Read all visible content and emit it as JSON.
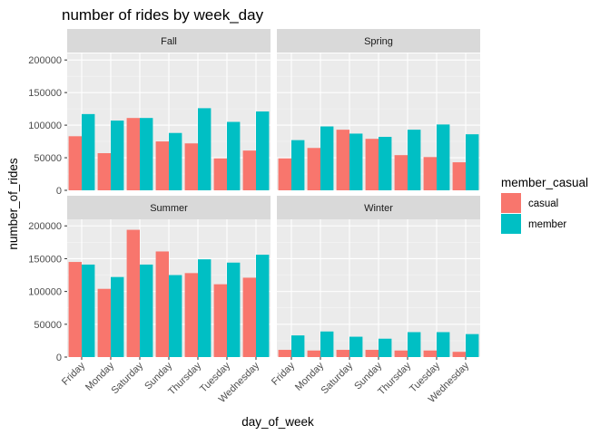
{
  "chart_data": {
    "type": "bar",
    "title": "number of rides by week_day",
    "xlabel": "day_of_week",
    "ylabel": "number_of_rides",
    "ylim": [
      0,
      210000
    ],
    "yticks": [
      0,
      50000,
      100000,
      150000,
      200000
    ],
    "ytick_labels": [
      "0",
      "50000",
      "100000",
      "150000",
      "200000"
    ],
    "categories": [
      "Friday",
      "Monday",
      "Saturday",
      "Sunday",
      "Thursday",
      "Tuesday",
      "Wednesday"
    ],
    "legend": {
      "title": "member_casual",
      "placement": "right",
      "entries": [
        {
          "name": "casual",
          "color": "#F8766D"
        },
        {
          "name": "member",
          "color": "#00BFC4"
        }
      ]
    },
    "facets": [
      {
        "panel": "Fall",
        "series": [
          {
            "name": "casual",
            "values": [
              83000,
              57000,
              111000,
              75000,
              72000,
              49000,
              61000
            ]
          },
          {
            "name": "member",
            "values": [
              117000,
              107000,
              111000,
              88000,
              126000,
              105000,
              121000
            ]
          }
        ]
      },
      {
        "panel": "Spring",
        "series": [
          {
            "name": "casual",
            "values": [
              49000,
              65000,
              93000,
              79000,
              54000,
              51000,
              43000
            ]
          },
          {
            "name": "member",
            "values": [
              77000,
              98000,
              87000,
              82000,
              93000,
              101000,
              86000
            ]
          }
        ]
      },
      {
        "panel": "Summer",
        "series": [
          {
            "name": "casual",
            "values": [
              145000,
              104000,
              194000,
              161000,
              128000,
              111000,
              121000
            ]
          },
          {
            "name": "member",
            "values": [
              141000,
              122000,
              141000,
              125000,
              149000,
              144000,
              156000
            ]
          }
        ]
      },
      {
        "panel": "Winter",
        "series": [
          {
            "name": "casual",
            "values": [
              11000,
              10000,
              11000,
              11000,
              10000,
              10000,
              8000
            ]
          },
          {
            "name": "member",
            "values": [
              33000,
              39000,
              31000,
              28000,
              38000,
              38000,
              35000
            ]
          }
        ]
      }
    ]
  },
  "colors": {
    "panel_background": "#EBEBEB",
    "grid_major": "#FFFFFF",
    "strip_background": "#D9D9D9"
  }
}
